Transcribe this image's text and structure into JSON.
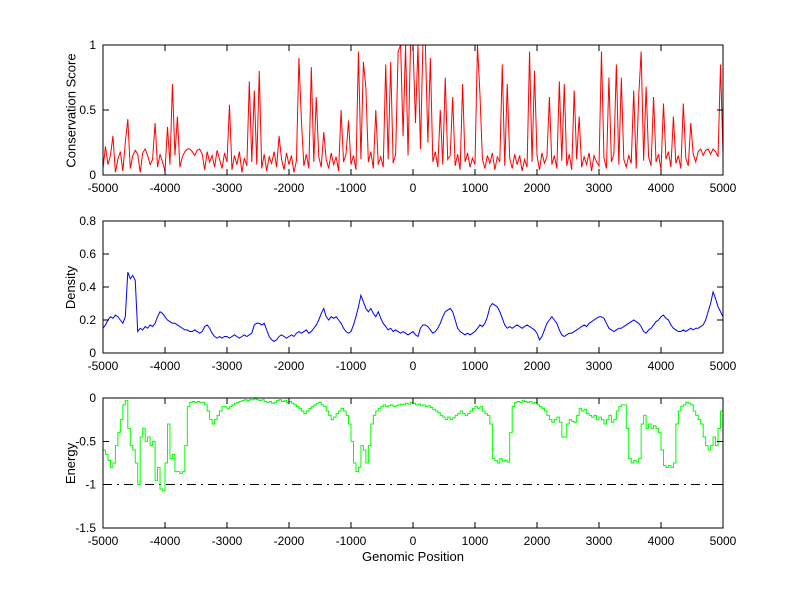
{
  "figure": {
    "background": "#ffffff",
    "title": ""
  },
  "colors": {
    "axis": "#000000",
    "background": "#ffffff"
  },
  "chart_data": [
    {
      "type": "line",
      "title": "",
      "ylabel": "Conservation Score",
      "xlabel": "",
      "xlim": [
        -5000,
        5000
      ],
      "ylim": [
        0,
        1
      ],
      "xticks": [
        -5000,
        -4000,
        -3000,
        -2000,
        -1000,
        0,
        1000,
        2000,
        3000,
        4000,
        5000
      ],
      "yticks": [
        0,
        0.5,
        1
      ],
      "line_color": "#ff0000",
      "step": false,
      "grid": false,
      "legend": "none",
      "x_start": -5000,
      "x_step": 40,
      "values": [
        0.05,
        0.22,
        0.08,
        0.15,
        0.3,
        0.02,
        0.12,
        0.18,
        0.03,
        0.25,
        0.43,
        0.05,
        0.15,
        0.19,
        0.16,
        0.02,
        0.17,
        0.2,
        0.15,
        0.08,
        0.12,
        0.4,
        0.06,
        0.16,
        0.1,
        0.03,
        0.37,
        0.08,
        0.7,
        0.15,
        0.45,
        0.06,
        0.14,
        0.18,
        0.2,
        0.2,
        0.18,
        0.15,
        0.19,
        0.2,
        0.16,
        0.04,
        0.18,
        0.1,
        0.15,
        0.06,
        0.19,
        0.12,
        0.05,
        0.17,
        0.1,
        0.54,
        0.04,
        0.15,
        0.08,
        0.18,
        0.02,
        0.13,
        0.07,
        0.72,
        0.1,
        0.65,
        0.08,
        0.8,
        0.05,
        0.16,
        0.03,
        0.14,
        0.09,
        0.18,
        0.06,
        0.3,
        0.12,
        0.04,
        0.17,
        0.08,
        0.15,
        0.02,
        0.11,
        0.9,
        0.42,
        0.07,
        0.16,
        0.05,
        0.83,
        0.1,
        0.6,
        0.14,
        0.06,
        0.33,
        0.12,
        0.05,
        0.17,
        0.08,
        0.14,
        0.03,
        0.5,
        0.1,
        0.16,
        0.42,
        0.08,
        0.15,
        0.04,
        0.95,
        0.12,
        0.87,
        0.67,
        0.1,
        0.18,
        0.05,
        0.5,
        0.08,
        0.14,
        0.06,
        0.85,
        0.12,
        0.87,
        0.09,
        0.16,
        0.95,
        1.0,
        0.3,
        1.0,
        0.15,
        1.0,
        1.0,
        0.4,
        1.0,
        0.2,
        1.0,
        1.0,
        0.25,
        0.9,
        0.1,
        0.18,
        0.06,
        0.5,
        0.08,
        0.75,
        0.12,
        0.15,
        0.6,
        0.07,
        0.16,
        0.04,
        0.7,
        0.1,
        0.17,
        0.06,
        0.13,
        0.08,
        1.0,
        0.62,
        0.12,
        0.05,
        0.15,
        0.09,
        0.17,
        0.04,
        0.14,
        0.1,
        0.85,
        0.07,
        0.7,
        0.13,
        0.05,
        0.16,
        0.08,
        0.15,
        0.03,
        0.12,
        0.06,
        0.95,
        0.1,
        0.8,
        0.15,
        0.04,
        0.17,
        0.09,
        0.14,
        0.6,
        0.08,
        0.15,
        0.05,
        0.72,
        0.11,
        0.7,
        0.07,
        0.16,
        0.04,
        0.65,
        0.12,
        0.45,
        0.06,
        0.14,
        0.08,
        0.17,
        0.03,
        0.15,
        0.1,
        0.07,
        0.95,
        0.13,
        0.05,
        0.75,
        0.1,
        0.16,
        0.85,
        0.08,
        0.75,
        0.12,
        0.06,
        0.15,
        0.09,
        0.65,
        0.05,
        0.6,
        0.95,
        0.11,
        0.68,
        0.14,
        0.07,
        0.6,
        0.1,
        0.16,
        0.04,
        0.55,
        0.12,
        0.18,
        0.06,
        0.45,
        0.09,
        0.15,
        0.05,
        0.55,
        0.13,
        0.07,
        0.4,
        0.16,
        0.1,
        0.18,
        0.2,
        0.15,
        0.19,
        0.2,
        0.16,
        0.2,
        0.18,
        0.14,
        0.85,
        0.15
      ]
    },
    {
      "type": "line",
      "title": "",
      "ylabel": "Density",
      "xlabel": "",
      "xlim": [
        -5000,
        5000
      ],
      "ylim": [
        0,
        0.8
      ],
      "xticks": [
        -5000,
        -4000,
        -3000,
        -2000,
        -1000,
        0,
        1000,
        2000,
        3000,
        4000,
        5000
      ],
      "yticks": [
        0,
        0.2,
        0.4,
        0.6,
        0.8
      ],
      "line_color": "#0000ff",
      "step": false,
      "grid": false,
      "legend": "none",
      "x_start": -5000,
      "x_step": 40,
      "values": [
        0.15,
        0.17,
        0.2,
        0.22,
        0.21,
        0.23,
        0.22,
        0.2,
        0.18,
        0.22,
        0.49,
        0.45,
        0.47,
        0.44,
        0.13,
        0.15,
        0.14,
        0.16,
        0.15,
        0.17,
        0.16,
        0.18,
        0.22,
        0.25,
        0.24,
        0.22,
        0.2,
        0.19,
        0.18,
        0.18,
        0.17,
        0.16,
        0.15,
        0.14,
        0.14,
        0.13,
        0.13,
        0.14,
        0.13,
        0.12,
        0.13,
        0.16,
        0.17,
        0.15,
        0.12,
        0.1,
        0.09,
        0.1,
        0.09,
        0.1,
        0.1,
        0.09,
        0.1,
        0.11,
        0.1,
        0.09,
        0.1,
        0.11,
        0.1,
        0.11,
        0.12,
        0.17,
        0.18,
        0.18,
        0.17,
        0.18,
        0.14,
        0.1,
        0.08,
        0.07,
        0.08,
        0.1,
        0.11,
        0.1,
        0.09,
        0.1,
        0.11,
        0.1,
        0.12,
        0.13,
        0.12,
        0.13,
        0.14,
        0.12,
        0.13,
        0.15,
        0.17,
        0.2,
        0.24,
        0.27,
        0.22,
        0.2,
        0.22,
        0.21,
        0.22,
        0.2,
        0.18,
        0.15,
        0.13,
        0.12,
        0.13,
        0.17,
        0.22,
        0.28,
        0.35,
        0.31,
        0.27,
        0.25,
        0.27,
        0.24,
        0.22,
        0.25,
        0.21,
        0.18,
        0.16,
        0.14,
        0.15,
        0.13,
        0.14,
        0.13,
        0.12,
        0.13,
        0.12,
        0.11,
        0.12,
        0.13,
        0.11,
        0.1,
        0.15,
        0.17,
        0.17,
        0.16,
        0.14,
        0.12,
        0.13,
        0.15,
        0.18,
        0.22,
        0.25,
        0.26,
        0.27,
        0.25,
        0.2,
        0.15,
        0.13,
        0.12,
        0.11,
        0.12,
        0.11,
        0.12,
        0.13,
        0.15,
        0.17,
        0.16,
        0.18,
        0.22,
        0.28,
        0.3,
        0.29,
        0.28,
        0.25,
        0.21,
        0.17,
        0.15,
        0.16,
        0.15,
        0.16,
        0.17,
        0.16,
        0.15,
        0.16,
        0.17,
        0.16,
        0.15,
        0.14,
        0.12,
        0.08,
        0.1,
        0.14,
        0.18,
        0.2,
        0.22,
        0.2,
        0.18,
        0.14,
        0.11,
        0.1,
        0.11,
        0.12,
        0.12,
        0.13,
        0.14,
        0.15,
        0.16,
        0.17,
        0.16,
        0.18,
        0.19,
        0.2,
        0.21,
        0.22,
        0.22,
        0.21,
        0.18,
        0.15,
        0.14,
        0.13,
        0.14,
        0.15,
        0.15,
        0.16,
        0.17,
        0.18,
        0.19,
        0.2,
        0.19,
        0.18,
        0.16,
        0.13,
        0.12,
        0.14,
        0.15,
        0.17,
        0.19,
        0.2,
        0.22,
        0.23,
        0.21,
        0.2,
        0.17,
        0.15,
        0.14,
        0.13,
        0.13,
        0.14,
        0.13,
        0.14,
        0.15,
        0.14,
        0.15,
        0.15,
        0.16,
        0.17,
        0.2,
        0.25,
        0.3,
        0.37,
        0.33,
        0.28,
        0.25,
        0.22
      ]
    },
    {
      "type": "line",
      "title": "",
      "ylabel": "Energy",
      "xlabel": "Genomic Position",
      "xlim": [
        -5000,
        5000
      ],
      "ylim": [
        -1.5,
        0
      ],
      "xticks": [
        -5000,
        -4000,
        -3000,
        -2000,
        -1000,
        0,
        1000,
        2000,
        3000,
        4000,
        5000
      ],
      "yticks": [
        -1.5,
        -1,
        -0.5,
        0
      ],
      "line_color": "#00ff00",
      "step": true,
      "grid": false,
      "legend": "none",
      "refline": {
        "y": -1,
        "color": "#000000",
        "style": "dash-dot"
      },
      "x_start": -5000,
      "x_step": 40,
      "values": [
        -0.6,
        -0.65,
        -0.72,
        -0.8,
        -0.75,
        -0.55,
        -0.4,
        -0.25,
        -0.08,
        -0.03,
        -0.35,
        -0.55,
        -0.6,
        -0.75,
        -1.0,
        -0.45,
        -0.35,
        -0.5,
        -0.45,
        -0.55,
        -0.5,
        -0.95,
        -0.8,
        -1.05,
        -1.07,
        -0.75,
        -0.3,
        -0.7,
        -0.65,
        -0.85,
        -0.85,
        -0.87,
        -0.85,
        -0.55,
        -0.1,
        -0.05,
        -0.04,
        -0.05,
        -0.04,
        -0.05,
        -0.05,
        -0.08,
        -0.15,
        -0.25,
        -0.3,
        -0.25,
        -0.2,
        -0.15,
        -0.1,
        -0.1,
        -0.12,
        -0.1,
        -0.08,
        -0.06,
        -0.05,
        -0.04,
        -0.03,
        -0.02,
        -0.03,
        -0.02,
        -0.02,
        -0.01,
        -0.02,
        -0.03,
        -0.02,
        -0.04,
        -0.05,
        -0.04,
        -0.06,
        -0.05,
        -0.03,
        -0.02,
        -0.04,
        -0.03,
        -0.05,
        -0.04,
        -0.06,
        -0.08,
        -0.1,
        -0.12,
        -0.15,
        -0.18,
        -0.15,
        -0.12,
        -0.1,
        -0.08,
        -0.06,
        -0.05,
        -0.08,
        -0.1,
        -0.15,
        -0.2,
        -0.25,
        -0.22,
        -0.18,
        -0.15,
        -0.12,
        -0.15,
        -0.2,
        -0.3,
        -0.5,
        -0.75,
        -0.85,
        -0.8,
        -0.55,
        -0.6,
        -0.75,
        -0.55,
        -0.3,
        -0.2,
        -0.15,
        -0.12,
        -0.1,
        -0.08,
        -0.1,
        -0.09,
        -0.08,
        -0.1,
        -0.09,
        -0.08,
        -0.07,
        -0.08,
        -0.06,
        -0.07,
        -0.05,
        -0.06,
        -0.08,
        -0.07,
        -0.09,
        -0.08,
        -0.1,
        -0.09,
        -0.11,
        -0.13,
        -0.15,
        -0.17,
        -0.2,
        -0.22,
        -0.25,
        -0.22,
        -0.25,
        -0.23,
        -0.2,
        -0.18,
        -0.15,
        -0.18,
        -0.2,
        -0.18,
        -0.15,
        -0.12,
        -0.1,
        -0.12,
        -0.1,
        -0.15,
        -0.18,
        -0.2,
        -0.3,
        -0.7,
        -0.72,
        -0.75,
        -0.7,
        -0.73,
        -0.72,
        -0.74,
        -0.4,
        -0.1,
        -0.05,
        -0.04,
        -0.05,
        -0.03,
        -0.04,
        -0.05,
        -0.04,
        -0.06,
        -0.05,
        -0.08,
        -0.1,
        -0.12,
        -0.15,
        -0.2,
        -0.25,
        -0.28,
        -0.25,
        -0.22,
        -0.28,
        -0.45,
        -0.45,
        -0.3,
        -0.25,
        -0.27,
        -0.28,
        -0.2,
        -0.12,
        -0.15,
        -0.13,
        -0.18,
        -0.2,
        -0.22,
        -0.2,
        -0.25,
        -0.22,
        -0.25,
        -0.3,
        -0.25,
        -0.2,
        -0.28,
        -0.25,
        -0.15,
        -0.1,
        -0.08,
        -0.08,
        -0.35,
        -0.7,
        -0.75,
        -0.72,
        -0.74,
        -0.7,
        -0.3,
        -0.2,
        -0.35,
        -0.3,
        -0.35,
        -0.32,
        -0.35,
        -0.4,
        -0.6,
        -0.78,
        -0.8,
        -0.78,
        -0.8,
        -0.75,
        -0.3,
        -0.15,
        -0.1,
        -0.08,
        -0.05,
        -0.06,
        -0.08,
        -0.15,
        -0.2,
        -0.25,
        -0.3,
        -0.45,
        -0.55,
        -0.6,
        -0.55,
        -0.45,
        -0.55,
        -0.35,
        -0.15,
        -0.08
      ]
    }
  ]
}
